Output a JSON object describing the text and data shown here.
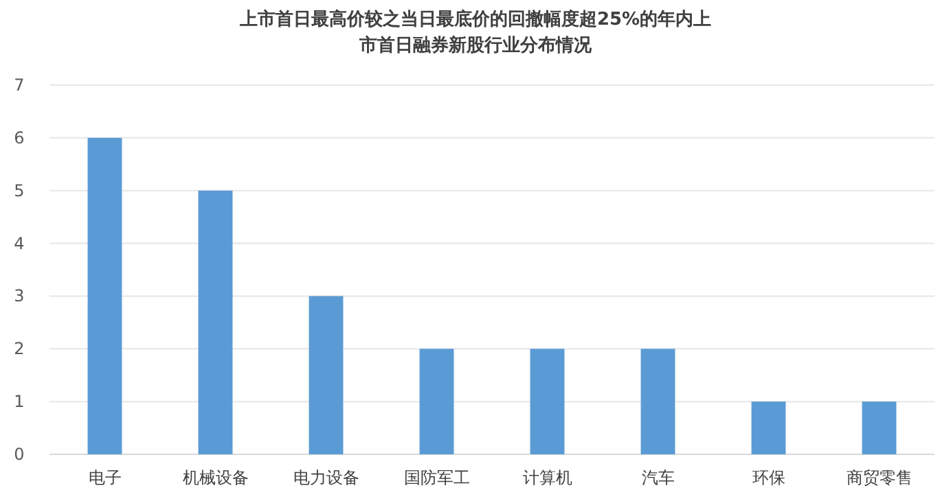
{
  "chart_data": {
    "type": "bar",
    "title": "上市首日最高价较之当日最底价的回撤幅度超25%的年内上市首日融券新股行业分布情况",
    "categories": [
      "电子",
      "机械设备",
      "电力设备",
      "国防军工",
      "计算机",
      "汽车",
      "环保",
      "商贸零售"
    ],
    "values": [
      6,
      5,
      3,
      2,
      2,
      2,
      1,
      1
    ],
    "color": "#5b9bd5",
    "ylim": [
      0,
      7
    ],
    "yticks": [
      0,
      1,
      2,
      3,
      4,
      5,
      6,
      7
    ],
    "grid": "y"
  }
}
